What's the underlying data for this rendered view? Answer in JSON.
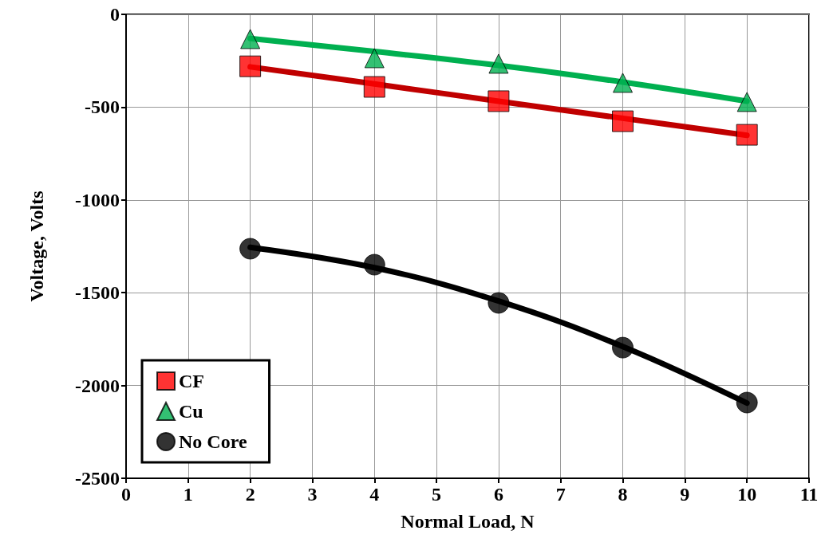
{
  "chart_data": {
    "type": "scatter",
    "xlabel": "Normal Load, N",
    "ylabel": "Voltage, Volts",
    "xlim": [
      0,
      11
    ],
    "xticks": [
      0,
      1,
      2,
      3,
      4,
      5,
      6,
      7,
      8,
      9,
      10,
      11
    ],
    "ylim": [
      -2500,
      0
    ],
    "yticks": [
      -2500,
      -2000,
      -1500,
      -1000,
      -500,
      0
    ],
    "grid": true,
    "legend": "bottom left",
    "series": [
      {
        "type": "line",
        "color": "#c00000",
        "marker": "none",
        "line_style": "solid",
        "x": [
          2,
          4,
          6,
          8,
          10
        ],
        "values": [
          -283,
          -375,
          -468,
          -560,
          -652
        ]
      },
      {
        "type": "line",
        "color": "#00b050",
        "marker": "none",
        "line_style": "solid",
        "x": [
          2,
          4,
          6,
          8,
          10
        ],
        "values": [
          -130,
          -200,
          -275,
          -365,
          -468
        ]
      },
      {
        "type": "line",
        "color": "#000000",
        "marker": "none",
        "line_style": "solid",
        "x": [
          2,
          4,
          6,
          8,
          10
        ],
        "values": [
          -1255,
          -1365,
          -1545,
          -1790,
          -2095
        ]
      },
      {
        "name": "CF",
        "color": "#ff0000",
        "marker": "square",
        "x": [
          2,
          4,
          6,
          8,
          10
        ],
        "values": [
          -280,
          -391,
          -468,
          -576,
          -649
        ]
      },
      {
        "name": "Cu",
        "color": "#00b050",
        "marker": "triangle",
        "x": [
          2,
          4,
          6,
          8,
          10
        ],
        "values": [
          -133,
          -236,
          -266,
          -369,
          -472
        ]
      },
      {
        "name": "No Core",
        "color": "#000000",
        "marker": "circle",
        "x": [
          2,
          4,
          6,
          8,
          10
        ],
        "values": [
          -1263,
          -1349,
          -1555,
          -1796,
          -2092
        ]
      }
    ]
  }
}
